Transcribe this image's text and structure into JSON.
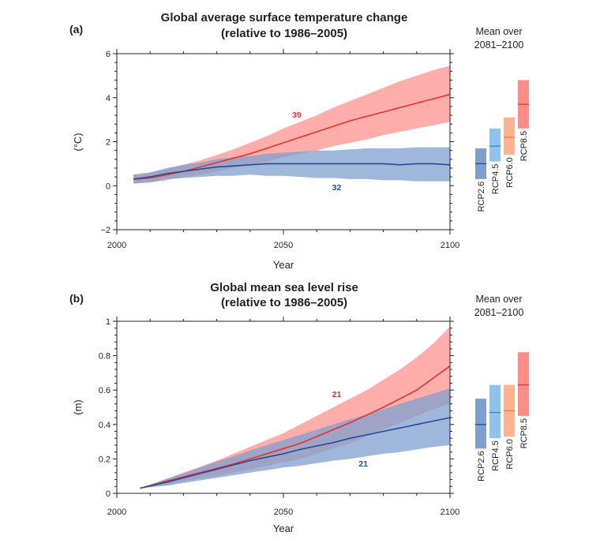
{
  "colors": {
    "rcp26_line": "#1f4e99",
    "rcp26_band": "#7f9fcf",
    "rcp85_line": "#e8312a",
    "rcp85_band": "#ff8c87",
    "rcp45": "#8fc3e8",
    "rcp60": "#f9b58f",
    "axis": "#231f20"
  },
  "chart_data": [
    {
      "type": "line",
      "panel_label": "(a)",
      "title": [
        "Global average surface temperature change",
        "(relative to 1986–2005)"
      ],
      "xlabel": "Year",
      "ylabel": "(°C)",
      "xlim": [
        2000,
        2100
      ],
      "ylim": [
        -2,
        6
      ],
      "xticks": [
        "2000",
        "2050",
        "2100"
      ],
      "yticks": [
        "−2",
        "0",
        "2",
        "4",
        "6"
      ],
      "yticks_values": [
        -2,
        0,
        2,
        4,
        6
      ],
      "series": [
        {
          "key": "rcp85",
          "label_text": "39",
          "x": [
            2005,
            2010,
            2015,
            2020,
            2025,
            2030,
            2035,
            2040,
            2045,
            2050,
            2055,
            2060,
            2065,
            2070,
            2075,
            2080,
            2085,
            2090,
            2095,
            2100
          ],
          "y": [
            0.3,
            0.35,
            0.5,
            0.65,
            0.85,
            1.05,
            1.25,
            1.45,
            1.7,
            1.95,
            2.2,
            2.45,
            2.7,
            2.95,
            3.15,
            3.35,
            3.55,
            3.75,
            3.95,
            4.15
          ],
          "lower": [
            0.1,
            0.15,
            0.25,
            0.4,
            0.5,
            0.65,
            0.8,
            0.95,
            1.1,
            1.3,
            1.45,
            1.6,
            1.8,
            1.95,
            2.1,
            2.3,
            2.45,
            2.6,
            2.75,
            2.9
          ],
          "upper": [
            0.5,
            0.6,
            0.75,
            0.95,
            1.15,
            1.4,
            1.65,
            1.95,
            2.25,
            2.6,
            2.9,
            3.2,
            3.55,
            3.85,
            4.15,
            4.45,
            4.75,
            5.0,
            5.25,
            5.45
          ]
        },
        {
          "key": "rcp26",
          "label_text": "32",
          "x": [
            2005,
            2010,
            2015,
            2020,
            2025,
            2030,
            2035,
            2040,
            2045,
            2050,
            2055,
            2060,
            2065,
            2070,
            2075,
            2080,
            2085,
            2090,
            2095,
            2100
          ],
          "y": [
            0.3,
            0.4,
            0.55,
            0.65,
            0.75,
            0.85,
            0.9,
            0.95,
            1.0,
            1.0,
            1.0,
            1.0,
            1.0,
            1.0,
            1.0,
            1.0,
            0.95,
            1.0,
            1.0,
            0.95
          ],
          "lower": [
            0.1,
            0.15,
            0.3,
            0.35,
            0.4,
            0.45,
            0.45,
            0.5,
            0.45,
            0.45,
            0.4,
            0.35,
            0.35,
            0.3,
            0.3,
            0.25,
            0.25,
            0.2,
            0.2,
            0.2
          ],
          "upper": [
            0.5,
            0.6,
            0.8,
            0.95,
            1.05,
            1.2,
            1.3,
            1.35,
            1.45,
            1.5,
            1.55,
            1.6,
            1.6,
            1.65,
            1.7,
            1.7,
            1.7,
            1.75,
            1.75,
            1.75
          ]
        }
      ],
      "mean_header": [
        "Mean over",
        "2081–2100"
      ],
      "mean_bars": [
        {
          "name": "RCP2.6",
          "low": 0.3,
          "mean": 1.0,
          "high": 1.7
        },
        {
          "name": "RCP4.5",
          "low": 1.1,
          "mean": 1.8,
          "high": 2.6
        },
        {
          "name": "RCP6.0",
          "low": 1.4,
          "mean": 2.2,
          "high": 3.1
        },
        {
          "name": "RCP8.5",
          "low": 2.6,
          "mean": 3.7,
          "high": 4.8
        }
      ]
    },
    {
      "type": "line",
      "panel_label": "(b)",
      "title": [
        "Global mean sea level rise",
        "(relative to 1986–2005)"
      ],
      "xlabel": "Year",
      "ylabel": "(m)",
      "xlim": [
        2000,
        2100
      ],
      "ylim": [
        0,
        1
      ],
      "xticks": [
        "2000",
        "2050",
        "2100"
      ],
      "yticks": [
        "0",
        "0.2",
        "0.4",
        "0.6",
        "0.8",
        "1"
      ],
      "yticks_values": [
        0,
        0.2,
        0.4,
        0.6,
        0.8,
        1
      ],
      "series": [
        {
          "key": "rcp85",
          "label_text": "21",
          "x": [
            2007,
            2015,
            2020,
            2025,
            2030,
            2035,
            2040,
            2045,
            2050,
            2055,
            2060,
            2065,
            2070,
            2075,
            2080,
            2085,
            2090,
            2095,
            2100
          ],
          "y": [
            0.03,
            0.07,
            0.095,
            0.12,
            0.145,
            0.17,
            0.2,
            0.23,
            0.26,
            0.29,
            0.33,
            0.37,
            0.41,
            0.455,
            0.5,
            0.55,
            0.6,
            0.67,
            0.74
          ],
          "lower": [
            0.03,
            0.05,
            0.07,
            0.085,
            0.1,
            0.12,
            0.14,
            0.16,
            0.18,
            0.2,
            0.23,
            0.26,
            0.29,
            0.33,
            0.37,
            0.41,
            0.45,
            0.49,
            0.52
          ],
          "upper": [
            0.03,
            0.085,
            0.12,
            0.155,
            0.19,
            0.23,
            0.27,
            0.31,
            0.35,
            0.4,
            0.45,
            0.5,
            0.55,
            0.6,
            0.66,
            0.72,
            0.79,
            0.87,
            0.97
          ]
        },
        {
          "key": "rcp26",
          "label_text": "21",
          "x": [
            2007,
            2015,
            2020,
            2025,
            2030,
            2035,
            2040,
            2045,
            2050,
            2055,
            2060,
            2065,
            2070,
            2075,
            2080,
            2085,
            2090,
            2095,
            2100
          ],
          "y": [
            0.03,
            0.065,
            0.09,
            0.115,
            0.14,
            0.165,
            0.19,
            0.21,
            0.23,
            0.255,
            0.275,
            0.295,
            0.32,
            0.34,
            0.36,
            0.38,
            0.4,
            0.42,
            0.44
          ],
          "lower": [
            0.03,
            0.045,
            0.06,
            0.075,
            0.09,
            0.105,
            0.12,
            0.135,
            0.15,
            0.16,
            0.175,
            0.19,
            0.2,
            0.215,
            0.23,
            0.24,
            0.255,
            0.27,
            0.28
          ],
          "upper": [
            0.03,
            0.085,
            0.115,
            0.15,
            0.185,
            0.215,
            0.25,
            0.28,
            0.31,
            0.34,
            0.37,
            0.4,
            0.43,
            0.46,
            0.49,
            0.52,
            0.55,
            0.58,
            0.61
          ]
        }
      ],
      "mean_header": [
        "Mean over",
        "2081–2100"
      ],
      "mean_bars": [
        {
          "name": "RCP2.6",
          "low": 0.26,
          "mean": 0.4,
          "high": 0.55
        },
        {
          "name": "RCP4.5",
          "low": 0.32,
          "mean": 0.47,
          "high": 0.63
        },
        {
          "name": "RCP6.0",
          "low": 0.33,
          "mean": 0.48,
          "high": 0.63
        },
        {
          "name": "RCP8.5",
          "low": 0.45,
          "mean": 0.63,
          "high": 0.82
        }
      ]
    }
  ]
}
